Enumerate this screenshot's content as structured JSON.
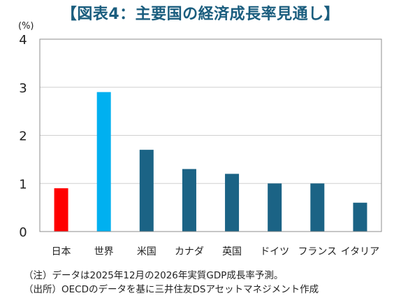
{
  "title": "【図表4：主要国の経済成長率見通し】",
  "chart_data": {
    "type": "bar",
    "title": "【図表4：主要国の経済成長率見通し】",
    "unit_label": "(%)",
    "categories": [
      "日本",
      "世界",
      "米国",
      "カナダ",
      "英国",
      "ドイツ",
      "フランス",
      "イタリア"
    ],
    "values": [
      0.9,
      2.9,
      1.7,
      1.3,
      1.2,
      1.0,
      1.0,
      0.6
    ],
    "colors": [
      "#ff0000",
      "#00b0f0",
      "#1b6385",
      "#1b6385",
      "#1b6385",
      "#1b6385",
      "#1b6385",
      "#1b6385"
    ],
    "ylim": [
      0,
      4
    ],
    "yticks": [
      0,
      1,
      2,
      3,
      4
    ],
    "grid": true,
    "xlabel": "",
    "ylabel": ""
  },
  "notes": [
    "（注）データは2025年12月の2026年実質GDP成長率予測。",
    "（出所）OECDのデータを基に三井住友DSアセットマネジメント作成"
  ]
}
